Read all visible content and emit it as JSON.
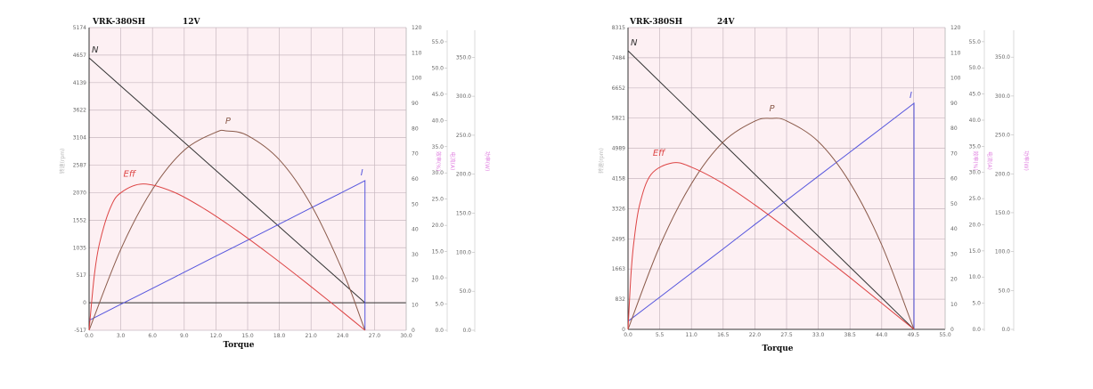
{
  "chart_data": [
    {
      "type": "line",
      "title_model": "VRK-380SH",
      "title_voltage": "12V",
      "xlabel": "Torque",
      "xlim": [
        0,
        30
      ],
      "xticks": [
        "0.0",
        "3.0",
        "6.0",
        "9.0",
        "12.0",
        "15.0",
        "18.0",
        "21.0",
        "24.0",
        "27.0",
        "30.0"
      ],
      "left_axis": {
        "label": "转速(rpm)",
        "ylim": [
          -517,
          5174
        ],
        "ticks": [
          "5174",
          "4657",
          "4139",
          "3622",
          "3104",
          "2587",
          "2070",
          "1552",
          "1035",
          "517",
          "0",
          "-517"
        ]
      },
      "right_axes": [
        {
          "label": "效率(%)",
          "ylim": [
            0,
            120
          ],
          "ticks": [
            "120",
            "110",
            "100",
            "90",
            "80",
            "70",
            "60",
            "50",
            "40",
            "30",
            "20",
            "10",
            "0"
          ]
        },
        {
          "label": "电流(A)",
          "ylim": [
            0,
            57.7
          ],
          "ticks": [
            "55.0",
            "50.0",
            "45.0",
            "40.0",
            "35.0",
            "30.0",
            "25.0",
            "20.0",
            "15.0",
            "10.0",
            "5.0",
            "0.0"
          ]
        },
        {
          "label": "功率(W)",
          "ylim": [
            0,
            388
          ],
          "ticks": [
            "350.0",
            "300.0",
            "250.0",
            "200.0",
            "150.0",
            "100.0",
            "50.0",
            "0.0"
          ]
        }
      ],
      "grid": true,
      "series": [
        {
          "name": "N",
          "axis": "left",
          "color": "#333333",
          "x": [
            0,
            3,
            6,
            9,
            12,
            15,
            18,
            21,
            24,
            26.1
          ],
          "y": [
            4605,
            4076,
            3546,
            3017,
            2488,
            1958,
            1429,
            900,
            371,
            0
          ]
        },
        {
          "name": "I",
          "axis": "right",
          "color": "#5555dd",
          "x": [
            0,
            3,
            6,
            9,
            12,
            15,
            18,
            21,
            24,
            26.1,
            26.1
          ],
          "y": [
            3.9,
            10.3,
            16.6,
            23.0,
            29.4,
            35.7,
            42.1,
            48.5,
            54.8,
            59.3,
            0
          ]
        },
        {
          "name": "P",
          "axis": "right",
          "color": "#8a5a4a",
          "x": [
            0,
            3,
            6,
            9,
            12,
            13.05,
            15,
            18,
            21,
            24,
            26.1
          ],
          "y": [
            0,
            32.1,
            55.9,
            71.4,
            78.5,
            79,
            77.2,
            67.6,
            49.7,
            23.4,
            0
          ]
        },
        {
          "name": "Eff",
          "axis": "right",
          "color": "#dd4444",
          "x": [
            0,
            0.5,
            1,
            2,
            3,
            5.1,
            8,
            11,
            14,
            17,
            20,
            23,
            26.1
          ],
          "y": [
            0,
            21.9,
            34.7,
            48.4,
            54.5,
            58,
            54.8,
            47.9,
            39.5,
            30.3,
            20.6,
            10.6,
            0
          ]
        }
      ]
    },
    {
      "type": "line",
      "title_model": "VRK-380SH",
      "title_voltage": "24V",
      "xlabel": "Torque",
      "xlim": [
        0,
        55
      ],
      "xticks": [
        "0.0",
        "5.5",
        "11.0",
        "16.5",
        "22.0",
        "27.5",
        "33.0",
        "38.5",
        "44.0",
        "49.5",
        "55.0"
      ],
      "left_axis": {
        "label": "转速(rpm)",
        "ylim": [
          0,
          8315
        ],
        "ticks": [
          "8315",
          "7484",
          "6652",
          "5821",
          "4989",
          "4158",
          "3326",
          "2495",
          "1663",
          "832",
          "0"
        ]
      },
      "right_axes": [
        {
          "label": "效率(%)",
          "ylim": [
            0,
            120
          ],
          "ticks": [
            "120",
            "110",
            "100",
            "90",
            "80",
            "70",
            "60",
            "50",
            "40",
            "30",
            "20",
            "10",
            "0"
          ]
        },
        {
          "label": "电流(A)",
          "ylim": [
            0,
            57.7
          ],
          "ticks": [
            "55.0",
            "50.0",
            "45.0",
            "40.0",
            "35.0",
            "30.0",
            "25.0",
            "20.0",
            "15.0",
            "10.0",
            "5.0",
            "0.0"
          ]
        },
        {
          "label": "功率(W)",
          "ylim": [
            0,
            388
          ],
          "ticks": [
            "350.0",
            "300.0",
            "250.0",
            "200.0",
            "150.0",
            "100.0",
            "50.0",
            "0.0"
          ]
        }
      ],
      "grid": true,
      "series": [
        {
          "name": "N",
          "axis": "left",
          "color": "#333333",
          "x": [
            0,
            5.5,
            11,
            16.5,
            22,
            27.5,
            33,
            38.5,
            44,
            49.6
          ],
          "y": [
            7677,
            6826,
            5974,
            5123,
            4272,
            3421,
            2569,
            1718,
            867,
            0
          ]
        },
        {
          "name": "I",
          "axis": "right",
          "color": "#5555dd",
          "x": [
            0,
            5.5,
            11,
            16.5,
            22,
            27.5,
            33,
            38.5,
            44,
            49.6,
            49.6
          ],
          "y": [
            3.2,
            12.8,
            22.4,
            32.0,
            41.7,
            51.3,
            60.9,
            70.5,
            80.1,
            89.9,
            0
          ]
        },
        {
          "name": "P",
          "axis": "right",
          "color": "#8a5a4a",
          "x": [
            0,
            5.5,
            11,
            16.5,
            22,
            24.8,
            27.5,
            33,
            38.5,
            44,
            49.6
          ],
          "y": [
            0,
            33.1,
            57.9,
            74.5,
            82.8,
            83.9,
            82.9,
            74.7,
            58.3,
            33.6,
            0
          ]
        },
        {
          "name": "Eff",
          "axis": "right",
          "color": "#dd4444",
          "x": [
            0,
            0.5,
            1,
            2,
            4,
            7.7,
            11,
            16.5,
            22,
            27.5,
            33,
            38.5,
            44,
            49.6
          ],
          "y": [
            0,
            21.3,
            34.4,
            49.4,
            61.6,
            66.2,
            64.5,
            58.0,
            49.5,
            40.2,
            30.5,
            20.6,
            10.4,
            0
          ]
        }
      ]
    }
  ]
}
